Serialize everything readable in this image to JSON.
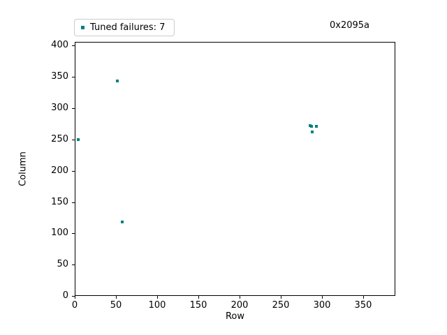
{
  "chart_data": {
    "type": "scatter",
    "title": "",
    "xlabel": "Row",
    "ylabel": "Column",
    "xlim": [
      0,
      389
    ],
    "ylim": [
      0,
      406
    ],
    "xticks": [
      0,
      50,
      100,
      150,
      200,
      250,
      300,
      350
    ],
    "yticks": [
      0,
      50,
      100,
      150,
      200,
      250,
      300,
      350,
      400
    ],
    "grid": false,
    "legend": {
      "label": "Tuned failures: 7",
      "position": "upper-left",
      "marker": "square"
    },
    "annotation": {
      "text": "0x2095a",
      "position": "top-right"
    },
    "series": [
      {
        "name": "Tuned failures",
        "count": 7,
        "marker": "square",
        "color": "#008080",
        "points": [
          [
            4,
            250
          ],
          [
            52,
            344
          ],
          [
            58,
            118
          ],
          [
            286,
            272
          ],
          [
            287,
            271
          ],
          [
            293,
            271
          ],
          [
            288,
            262
          ]
        ]
      }
    ]
  }
}
